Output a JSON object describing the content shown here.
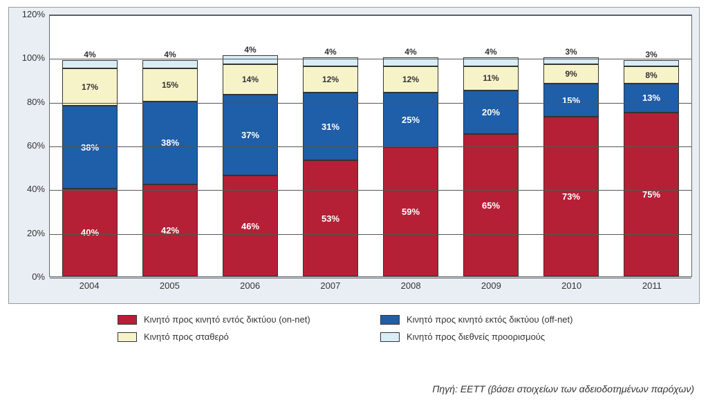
{
  "chart": {
    "type": "stacked-bar",
    "ymax": 120,
    "ytick_step": 20,
    "yticks": [
      "0%",
      "20%",
      "40%",
      "60%",
      "80%",
      "100%",
      "120%"
    ],
    "categories": [
      "2004",
      "2005",
      "2006",
      "2007",
      "2008",
      "2009",
      "2010",
      "2011"
    ],
    "series_colors": [
      "#b52036",
      "#1f5ea8",
      "#f7f3c9",
      "#d9edf7"
    ],
    "background_color": "#e9eef4",
    "plot_background": "#ffffff",
    "grid_color": "#555555",
    "data": [
      {
        "values": [
          40,
          38,
          17,
          4
        ],
        "labels": [
          "40%",
          "38%",
          "17%",
          "4%"
        ]
      },
      {
        "values": [
          42,
          38,
          15,
          4
        ],
        "labels": [
          "42%",
          "38%",
          "15%",
          "4%"
        ]
      },
      {
        "values": [
          46,
          37,
          14,
          4
        ],
        "labels": [
          "46%",
          "37%",
          "14%",
          "4%"
        ]
      },
      {
        "values": [
          53,
          31,
          12,
          4
        ],
        "labels": [
          "53%",
          "31%",
          "12%",
          "4%"
        ]
      },
      {
        "values": [
          59,
          25,
          12,
          4
        ],
        "labels": [
          "59%",
          "25%",
          "12%",
          "4%"
        ]
      },
      {
        "values": [
          65,
          20,
          11,
          4
        ],
        "labels": [
          "65%",
          "20%",
          "11%",
          "4%"
        ]
      },
      {
        "values": [
          73,
          15,
          9,
          3
        ],
        "labels": [
          "73%",
          "15%",
          "9%",
          "3%"
        ]
      },
      {
        "values": [
          75,
          13,
          8,
          3
        ],
        "labels": [
          "75%",
          "13%",
          "8%",
          "3%"
        ]
      }
    ]
  },
  "legend": {
    "items": [
      "Κινητό προς κινητό εντός δικτύου (on-net)",
      "Κινητό προς κινητό εκτός δικτύου (off-net)",
      "Κινητό προς σταθερό",
      "Κινητό προς διεθνείς προορισμούς"
    ]
  },
  "source": "Πηγή: ΕΕΤΤ (βάσει στοιχείων των αδειοδοτημένων παρόχων)"
}
